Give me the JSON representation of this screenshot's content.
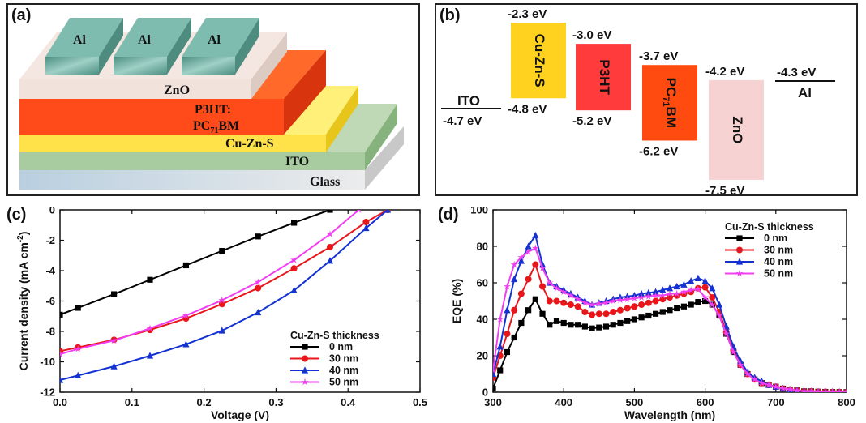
{
  "panels": {
    "a": {
      "label": "(a)",
      "layers": {
        "al": "Al",
        "zno": "ZnO",
        "p3ht_line1": "P3HT:",
        "p3ht_line2_main": "PC",
        "p3ht_line2_sub": "71",
        "p3ht_line2_end": "BM",
        "cuzns": "Cu-Zn-S",
        "ito": "ITO",
        "glass": "Glass"
      },
      "colors": {
        "al": "#6aa89a",
        "zno": "#f1e2dc",
        "p3ht": "#ff4a1a",
        "cuzns": "#ffe24a",
        "ito": "#a8cba0",
        "glass": "#d6e0e6"
      }
    },
    "b": {
      "label": "(b)",
      "ito_name": "ITO",
      "ito_level": "-4.7 eV",
      "al_name": "Al",
      "al_level": "-4.3 eV",
      "bars": [
        {
          "name": "Cu-Zn-S",
          "name_sub": "",
          "lumo": -2.3,
          "homo": -4.8,
          "lumo_label": "-2.3 eV",
          "homo_label": "-4.8 eV",
          "color": "#ffd21f"
        },
        {
          "name": "P3HT",
          "name_sub": "",
          "lumo": -3.0,
          "homo": -5.2,
          "lumo_label": "-3.0 eV",
          "homo_label": "-5.2 eV",
          "color": "#ff3b3b"
        },
        {
          "name": "PC",
          "name_sub": "71",
          "name_end": "BM",
          "lumo": -3.7,
          "homo": -6.2,
          "lumo_label": "-3.7 eV",
          "homo_label": "-6.2 eV",
          "color": "#ff4a10"
        },
        {
          "name": "ZnO",
          "name_sub": "",
          "lumo": -4.2,
          "homo": -7.5,
          "lumo_label": "-4.2 eV",
          "homo_label": "-7.5 eV",
          "color": "#f7d2d2"
        }
      ]
    },
    "c": {
      "label": "(c)"
    },
    "d": {
      "label": "(d)"
    }
  },
  "chart_data": [
    {
      "type": "line",
      "panel": "c",
      "xlabel": "Voltage (V)",
      "ylabel": "Current density (mA cm",
      "ylabel_sup": "-2",
      "ylabel_end": ")",
      "xlim": [
        0.0,
        0.5
      ],
      "ylim": [
        -12,
        0
      ],
      "xticks": [
        "0.0",
        "0.1",
        "0.2",
        "0.3",
        "0.4",
        "0.5"
      ],
      "xtick_values": [
        0.0,
        0.1,
        0.2,
        0.3,
        0.4,
        0.5
      ],
      "yticks": [
        "0",
        "-2",
        "-4",
        "-6",
        "-8",
        "-10",
        "-12"
      ],
      "ytick_values": [
        0,
        -2,
        -4,
        -6,
        -8,
        -10,
        -12
      ],
      "legend_title": "Cu-Zn-S thickness",
      "legend_position": "lower-right",
      "series": [
        {
          "name": "0 nm",
          "color": "#000000",
          "marker": "square",
          "x": [
            0.0,
            0.025,
            0.075,
            0.125,
            0.175,
            0.225,
            0.275,
            0.325,
            0.375
          ],
          "y": [
            -6.9,
            -6.45,
            -5.55,
            -4.6,
            -3.65,
            -2.7,
            -1.75,
            -0.85,
            0.0
          ]
        },
        {
          "name": "30 nm",
          "color": "#e8161b",
          "marker": "circle",
          "x": [
            0.0,
            0.025,
            0.075,
            0.125,
            0.175,
            0.225,
            0.275,
            0.325,
            0.375,
            0.425,
            0.455
          ],
          "y": [
            -9.3,
            -9.05,
            -8.55,
            -7.9,
            -7.15,
            -6.2,
            -5.15,
            -3.85,
            -2.45,
            -0.8,
            0.0
          ]
        },
        {
          "name": "40 nm",
          "color": "#1431d1",
          "marker": "triangle",
          "x": [
            0.0,
            0.025,
            0.075,
            0.125,
            0.175,
            0.225,
            0.275,
            0.325,
            0.375,
            0.425,
            0.455
          ],
          "y": [
            -11.2,
            -10.9,
            -10.3,
            -9.6,
            -8.85,
            -7.95,
            -6.75,
            -5.3,
            -3.35,
            -1.2,
            0.0
          ]
        },
        {
          "name": "50 nm",
          "color": "#f03ff0",
          "marker": "star",
          "x": [
            0.0,
            0.025,
            0.075,
            0.125,
            0.175,
            0.225,
            0.275,
            0.325,
            0.375,
            0.415
          ],
          "y": [
            -9.5,
            -9.15,
            -8.6,
            -7.8,
            -6.95,
            -5.95,
            -4.75,
            -3.3,
            -1.6,
            0.0
          ]
        }
      ]
    },
    {
      "type": "line",
      "panel": "d",
      "xlabel": "Wavelength (nm)",
      "ylabel": "EQE (%)",
      "xlim": [
        300,
        800
      ],
      "ylim": [
        0,
        100
      ],
      "xticks": [
        "300",
        "400",
        "500",
        "600",
        "700",
        "800"
      ],
      "xtick_values": [
        300,
        400,
        500,
        600,
        700,
        800
      ],
      "yticks": [
        "0",
        "20",
        "40",
        "60",
        "80",
        "100"
      ],
      "ytick_values": [
        0,
        20,
        40,
        60,
        80,
        100
      ],
      "legend_title": "Cu-Zn-S thickness",
      "legend_position": "top-right",
      "series": [
        {
          "name": "0 nm",
          "color": "#000000",
          "marker": "square",
          "x": [
            300,
            310,
            320,
            330,
            340,
            350,
            360,
            370,
            380,
            390,
            400,
            410,
            420,
            430,
            440,
            450,
            460,
            470,
            480,
            490,
            500,
            510,
            520,
            530,
            540,
            550,
            560,
            570,
            580,
            590,
            600,
            610,
            620,
            630,
            640,
            650,
            660,
            670,
            680,
            690,
            700,
            710,
            720,
            730,
            740,
            750,
            760,
            770,
            780,
            790,
            800
          ],
          "y": [
            2,
            12,
            22,
            30,
            38,
            45,
            51,
            43,
            37,
            39,
            38,
            37,
            37,
            36,
            35,
            35.5,
            36,
            37,
            38,
            39,
            40,
            41,
            42,
            43,
            44,
            45,
            46,
            47,
            48,
            49.5,
            50,
            48,
            42,
            32,
            22,
            15,
            10,
            7,
            5,
            4,
            3,
            2,
            1.5,
            1,
            0.5,
            0.5,
            0.3,
            0.2,
            0.1,
            0.1,
            0.1
          ]
        },
        {
          "name": "30 nm",
          "color": "#e8161b",
          "marker": "circle",
          "x": [
            300,
            310,
            320,
            330,
            340,
            350,
            360,
            370,
            380,
            390,
            400,
            410,
            420,
            430,
            440,
            450,
            460,
            470,
            480,
            490,
            500,
            510,
            520,
            530,
            540,
            550,
            560,
            570,
            580,
            590,
            600,
            610,
            620,
            630,
            640,
            650,
            660,
            670,
            680,
            690,
            700,
            710,
            720,
            730,
            740,
            750,
            760,
            770,
            780,
            790,
            800
          ],
          "y": [
            8,
            20,
            32,
            45,
            54,
            62,
            70,
            58,
            50,
            50,
            49,
            48,
            47,
            44,
            42.5,
            43,
            43,
            44,
            45,
            46,
            47,
            48,
            49,
            50,
            51,
            52,
            53,
            54,
            55,
            57,
            57.5,
            52,
            44,
            33,
            23,
            15,
            10,
            7,
            5,
            4,
            3,
            2,
            1.5,
            1,
            0.5,
            0.5,
            0.3,
            0.2,
            0.1,
            0.1,
            0.1
          ]
        },
        {
          "name": "40 nm",
          "color": "#1431d1",
          "marker": "triangle",
          "x": [
            300,
            310,
            320,
            330,
            340,
            350,
            360,
            370,
            380,
            390,
            400,
            410,
            420,
            430,
            440,
            450,
            460,
            470,
            480,
            490,
            500,
            510,
            520,
            530,
            540,
            550,
            560,
            570,
            580,
            590,
            600,
            610,
            620,
            630,
            640,
            650,
            660,
            670,
            680,
            690,
            700,
            710,
            720,
            730,
            740,
            750,
            760,
            770,
            780,
            790,
            800
          ],
          "y": [
            10,
            25,
            45,
            62,
            72,
            80,
            86,
            70,
            60,
            58,
            56,
            54,
            52,
            50,
            48,
            49,
            50,
            51,
            52,
            52.5,
            53,
            54,
            54.5,
            55,
            56,
            57,
            58,
            59,
            61,
            62.5,
            61,
            57,
            48,
            36,
            25,
            17,
            11,
            8,
            6,
            4,
            3,
            2,
            1.5,
            1,
            0.5,
            0.5,
            0.3,
            0.2,
            0.1,
            0.1,
            0.1
          ]
        },
        {
          "name": "50 nm",
          "color": "#f03ff0",
          "marker": "star",
          "x": [
            300,
            310,
            320,
            330,
            340,
            350,
            360,
            370,
            380,
            390,
            400,
            410,
            420,
            430,
            440,
            450,
            460,
            470,
            480,
            490,
            500,
            510,
            520,
            530,
            540,
            550,
            560,
            570,
            580,
            590,
            600,
            610,
            620,
            630,
            640,
            650,
            660,
            670,
            680,
            690,
            700,
            710,
            720,
            730,
            740,
            750,
            760,
            770,
            780,
            790,
            800
          ],
          "y": [
            12,
            40,
            58,
            70,
            74,
            77,
            79,
            68,
            60,
            57,
            55,
            53,
            51,
            49,
            48,
            48.5,
            49,
            50,
            50.5,
            51,
            51.5,
            52,
            52.5,
            53,
            53,
            54,
            54,
            55,
            56,
            56.5,
            52,
            48,
            42,
            32,
            22,
            15,
            10,
            7,
            5,
            4,
            3,
            2,
            1.5,
            1,
            0.5,
            0.5,
            0.3,
            0.2,
            0.1,
            0.1,
            0.1
          ]
        }
      ]
    }
  ]
}
